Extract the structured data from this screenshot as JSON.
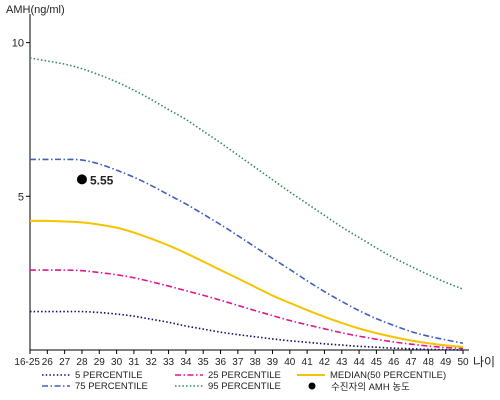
{
  "chart_data": {
    "type": "line",
    "ylabel": "AMH(ng/ml)",
    "xlabel": "나이",
    "x_tick_labels": [
      "16-25",
      "26",
      "27",
      "28",
      "29",
      "30",
      "31",
      "32",
      "33",
      "34",
      "35",
      "36",
      "37",
      "38",
      "39",
      "40",
      "41",
      "42",
      "43",
      "44",
      "45",
      "46",
      "47",
      "48",
      "49",
      "50"
    ],
    "x_values": [
      25,
      26,
      27,
      28,
      29,
      30,
      31,
      32,
      33,
      34,
      35,
      36,
      37,
      38,
      39,
      40,
      41,
      42,
      43,
      44,
      45,
      46,
      47,
      48,
      49,
      50
    ],
    "y_ticks": [
      5,
      10
    ],
    "ylim": [
      0,
      10.8
    ],
    "xlim": [
      25,
      50
    ],
    "grid": false,
    "legend_position": "bottom",
    "series": [
      {
        "name": "5 PERCENTILE",
        "color": "#0d0d6b",
        "style": "dotted",
        "values": [
          1.25,
          1.25,
          1.25,
          1.25,
          1.22,
          1.17,
          1.1,
          1.0,
          0.9,
          0.78,
          0.68,
          0.58,
          0.5,
          0.43,
          0.36,
          0.3,
          0.25,
          0.2,
          0.16,
          0.12,
          0.09,
          0.06,
          0.04,
          0.02,
          0.01,
          0.0
        ]
      },
      {
        "name": "25 PERCENTILE",
        "color": "#e0158f",
        "style": "dashdot",
        "values": [
          2.6,
          2.6,
          2.6,
          2.58,
          2.52,
          2.45,
          2.35,
          2.22,
          2.08,
          1.93,
          1.78,
          1.62,
          1.45,
          1.28,
          1.12,
          0.96,
          0.82,
          0.69,
          0.56,
          0.45,
          0.35,
          0.26,
          0.19,
          0.13,
          0.08,
          0.05
        ]
      },
      {
        "name": "MEDIAN(50 PERCENTILE)",
        "color": "#f5c300",
        "style": "solid",
        "values": [
          4.2,
          4.2,
          4.18,
          4.15,
          4.08,
          3.98,
          3.82,
          3.62,
          3.4,
          3.15,
          2.88,
          2.6,
          2.33,
          2.05,
          1.77,
          1.53,
          1.3,
          1.08,
          0.88,
          0.7,
          0.55,
          0.42,
          0.31,
          0.22,
          0.15,
          0.1
        ]
      },
      {
        "name": "75 PERCENTILE",
        "color": "#3f5fbf",
        "style": "dashdot",
        "values": [
          6.2,
          6.2,
          6.2,
          6.18,
          6.05,
          5.85,
          5.62,
          5.35,
          5.05,
          4.75,
          4.42,
          4.08,
          3.72,
          3.35,
          2.98,
          2.62,
          2.25,
          1.9,
          1.58,
          1.28,
          1.02,
          0.8,
          0.6,
          0.45,
          0.33,
          0.22
        ]
      },
      {
        "name": "95 PERCENTILE",
        "color": "#2e8b57",
        "style": "dotted",
        "values": [
          9.5,
          9.4,
          9.3,
          9.15,
          8.95,
          8.72,
          8.45,
          8.15,
          7.82,
          7.5,
          7.12,
          6.74,
          6.34,
          5.94,
          5.54,
          5.14,
          4.76,
          4.38,
          4.0,
          3.66,
          3.32,
          3.0,
          2.72,
          2.45,
          2.2,
          1.98
        ]
      }
    ],
    "marker": {
      "name": "수진자의 AMH 농도",
      "x": 28,
      "y": 5.55,
      "label": "5.55",
      "color": "#000000"
    }
  }
}
